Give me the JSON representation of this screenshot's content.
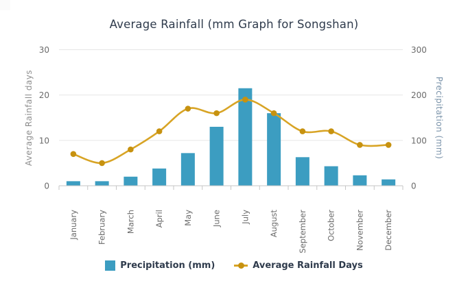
{
  "title": "Average Rainfall (mm Graph for Songshan)",
  "chart_data": {
    "type": "bar",
    "subtype": "bar-and-line-dual-axis",
    "categories": [
      "January",
      "February",
      "March",
      "April",
      "May",
      "June",
      "July",
      "August",
      "September",
      "October",
      "November",
      "December"
    ],
    "series": [
      {
        "name": "Precipitation (mm)",
        "type": "bar",
        "axis": "right",
        "values": [
          10,
          10,
          20,
          38,
          72,
          130,
          215,
          160,
          63,
          43,
          23,
          14
        ]
      },
      {
        "name": "Average Rainfall Days",
        "type": "line",
        "axis": "left",
        "values": [
          7,
          5,
          8,
          12,
          17,
          16,
          19,
          16,
          12,
          12,
          9,
          9
        ]
      }
    ],
    "left_axis": {
      "title": "Average Rainfall days",
      "min": 0,
      "max": 30,
      "ticks": [
        0,
        10,
        20,
        30
      ]
    },
    "right_axis": {
      "title": "Precipitation (mm)",
      "min": 0,
      "max": 300,
      "ticks": [
        0,
        100,
        200,
        300
      ]
    },
    "grid": true,
    "legend_position": "bottom"
  },
  "colors": {
    "background": "#ffffff",
    "bar": "#3c9dc1",
    "line": "#d8a425",
    "marker": "#c79210",
    "gridline": "#e6e6e6",
    "axis_line": "#c6c6c6",
    "tick_text": "#6b6b6b",
    "month_text": "#6b6b6b",
    "title_text": "#2f3b4c",
    "legend_text": "#2f3b4c",
    "left_axis_title": "#8e8e8e",
    "right_axis_title": "#7992a9",
    "corner_square": "#fafafa"
  }
}
